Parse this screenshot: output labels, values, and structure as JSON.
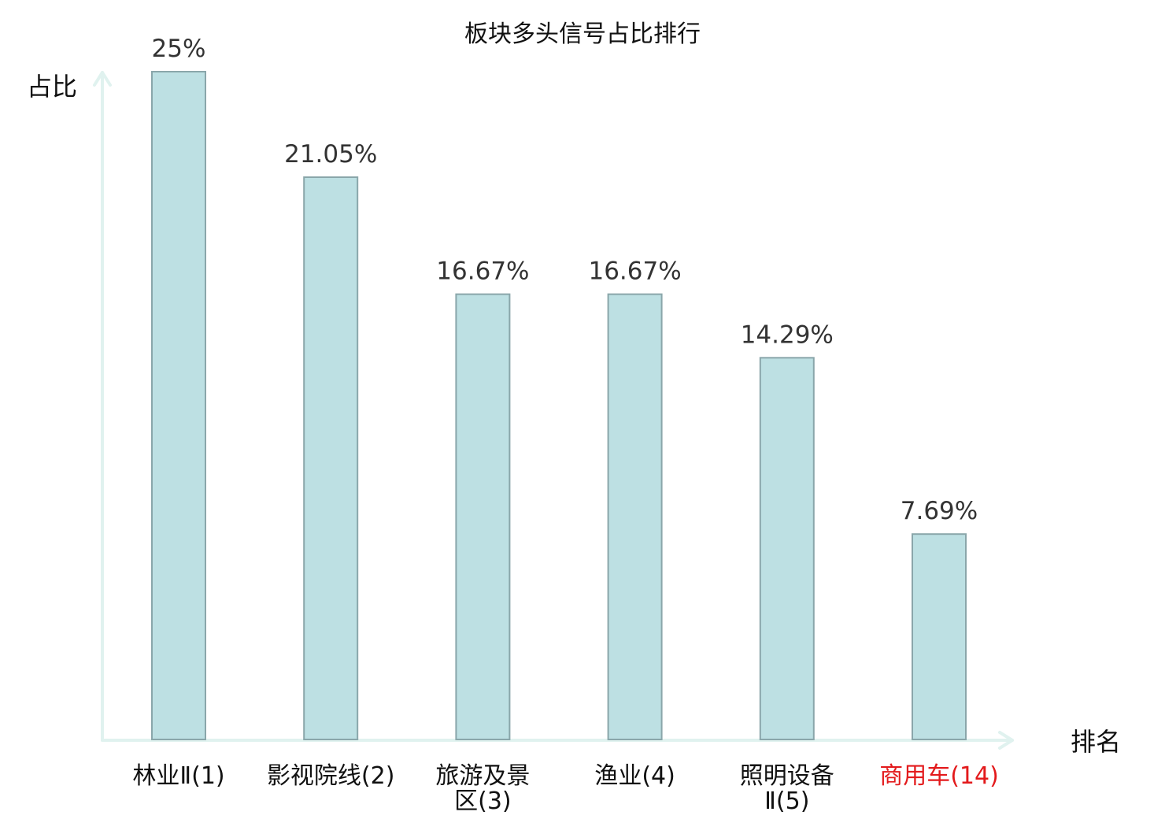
{
  "chart_data": {
    "type": "bar",
    "title": "板块多头信号占比排行",
    "xlabel": "排名",
    "ylabel": "占比",
    "categories": [
      [
        "林业Ⅱ(1)"
      ],
      [
        "影视院线(2)"
      ],
      [
        "旅游及景",
        "区(3)"
      ],
      [
        "渔业(4)"
      ],
      [
        "照明设备",
        "Ⅱ(5)"
      ],
      [
        "商用车(14)"
      ]
    ],
    "values": [
      25,
      21.05,
      16.67,
      16.67,
      14.29,
      7.69
    ],
    "value_labels": [
      "25%",
      "21.05%",
      "16.67%",
      "16.67%",
      "14.29%",
      "7.69%"
    ],
    "category_colors": [
      "#111111",
      "#111111",
      "#111111",
      "#111111",
      "#111111",
      "#e31a1c"
    ],
    "ylim": [
      0,
      25
    ],
    "grid": false,
    "legend": "none",
    "colors": {
      "bar_fill": "#bde0e3",
      "bar_stroke": "#8aa6aa",
      "axis": "#e0f2ef",
      "highlight": "#e31a1c"
    }
  }
}
